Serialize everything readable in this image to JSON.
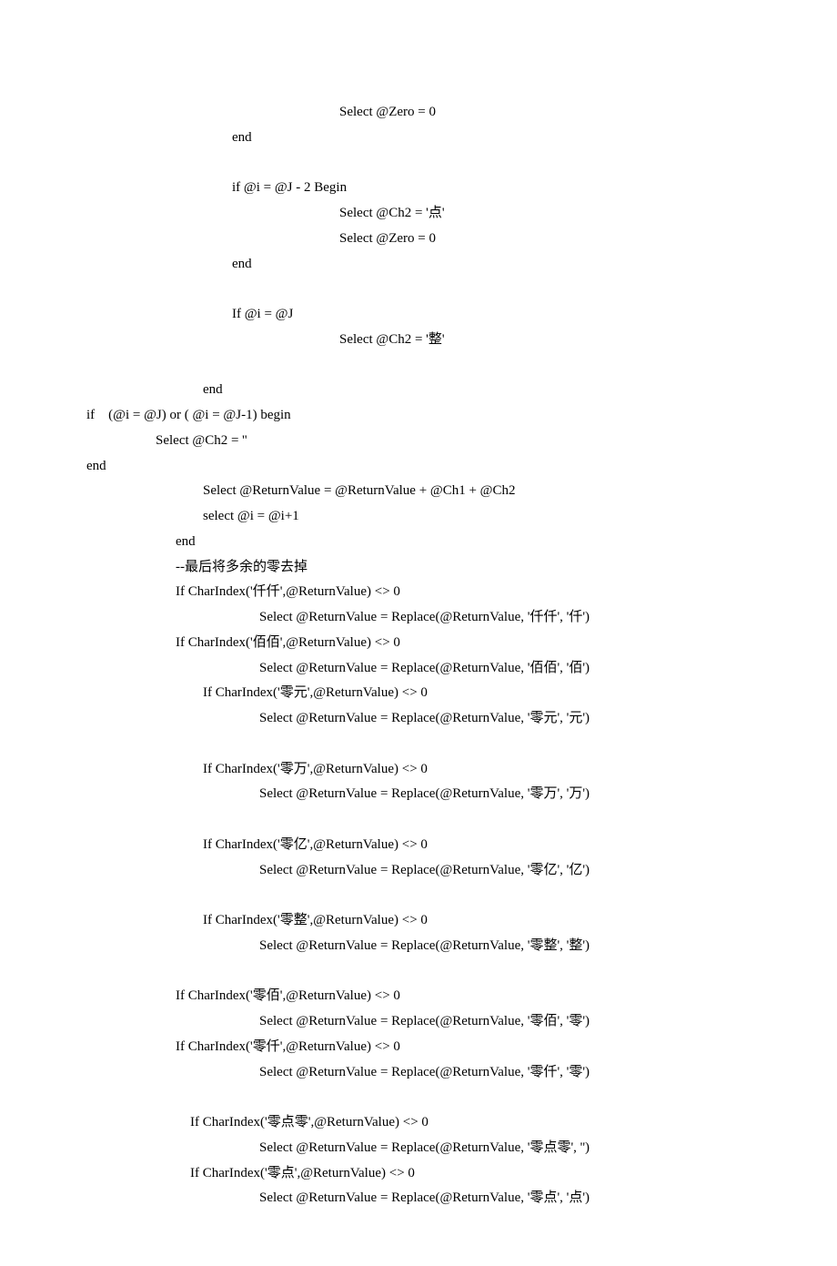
{
  "lines": [
    {
      "indent": 278,
      "text": "Select @Zero = 0"
    },
    {
      "indent": 160,
      "text": "end"
    },
    {
      "indent": 160,
      "text": ""
    },
    {
      "indent": 160,
      "text": "if @i = @J - 2 Begin"
    },
    {
      "indent": 278,
      "text": "Select @Ch2 = '点'"
    },
    {
      "indent": 278,
      "text": "Select @Zero = 0"
    },
    {
      "indent": 160,
      "text": "end"
    },
    {
      "indent": 160,
      "text": ""
    },
    {
      "indent": 160,
      "text": "If @i = @J"
    },
    {
      "indent": 278,
      "text": "Select @Ch2 = '整'"
    },
    {
      "indent": 160,
      "text": ""
    },
    {
      "indent": 128,
      "text": "end"
    },
    {
      "indent": 0,
      "text": "if    (@i = @J) or ( @i = @J-1) begin"
    },
    {
      "indent": 76,
      "text": "Select @Ch2 = ''"
    },
    {
      "indent": 0,
      "text": "end"
    },
    {
      "indent": 128,
      "text": "Select @ReturnValue = @ReturnValue + @Ch1 + @Ch2"
    },
    {
      "indent": 128,
      "text": "select @i = @i+1"
    },
    {
      "indent": 98,
      "text": "end"
    },
    {
      "indent": 98,
      "text": "--最后将多余的零去掉"
    },
    {
      "indent": 98,
      "text": "If CharIndex('仟仟',@ReturnValue) <> 0"
    },
    {
      "indent": 190,
      "text": "Select @ReturnValue = Replace(@ReturnValue, '仟仟', '仟')"
    },
    {
      "indent": 98,
      "text": "If CharIndex('佰佰',@ReturnValue) <> 0"
    },
    {
      "indent": 190,
      "text": "Select @ReturnValue = Replace(@ReturnValue, '佰佰', '佰')"
    },
    {
      "indent": 128,
      "text": "If CharIndex('零元',@ReturnValue) <> 0"
    },
    {
      "indent": 190,
      "text": "Select @ReturnValue = Replace(@ReturnValue, '零元', '元')"
    },
    {
      "indent": 128,
      "text": ""
    },
    {
      "indent": 128,
      "text": "If CharIndex('零万',@ReturnValue) <> 0"
    },
    {
      "indent": 190,
      "text": "Select @ReturnValue = Replace(@ReturnValue, '零万', '万')"
    },
    {
      "indent": 128,
      "text": ""
    },
    {
      "indent": 128,
      "text": "If CharIndex('零亿',@ReturnValue) <> 0"
    },
    {
      "indent": 190,
      "text": "Select @ReturnValue = Replace(@ReturnValue, '零亿', '亿')"
    },
    {
      "indent": 128,
      "text": ""
    },
    {
      "indent": 128,
      "text": "If CharIndex('零整',@ReturnValue) <> 0"
    },
    {
      "indent": 190,
      "text": "Select @ReturnValue = Replace(@ReturnValue, '零整', '整')"
    },
    {
      "indent": 128,
      "text": ""
    },
    {
      "indent": 98,
      "text": "If CharIndex('零佰',@ReturnValue) <> 0"
    },
    {
      "indent": 190,
      "text": "Select @ReturnValue = Replace(@ReturnValue, '零佰', '零')"
    },
    {
      "indent": 98,
      "text": "If CharIndex('零仟',@ReturnValue) <> 0"
    },
    {
      "indent": 190,
      "text": "Select @ReturnValue = Replace(@ReturnValue, '零仟', '零')"
    },
    {
      "indent": 98,
      "text": ""
    },
    {
      "indent": 114,
      "text": "If CharIndex('零点零',@ReturnValue) <> 0"
    },
    {
      "indent": 190,
      "text": "Select @ReturnValue = Replace(@ReturnValue, '零点零', '')"
    },
    {
      "indent": 114,
      "text": "If CharIndex('零点',@ReturnValue) <> 0"
    },
    {
      "indent": 190,
      "text": "Select @ReturnValue = Replace(@ReturnValue, '零点', '点')"
    }
  ]
}
